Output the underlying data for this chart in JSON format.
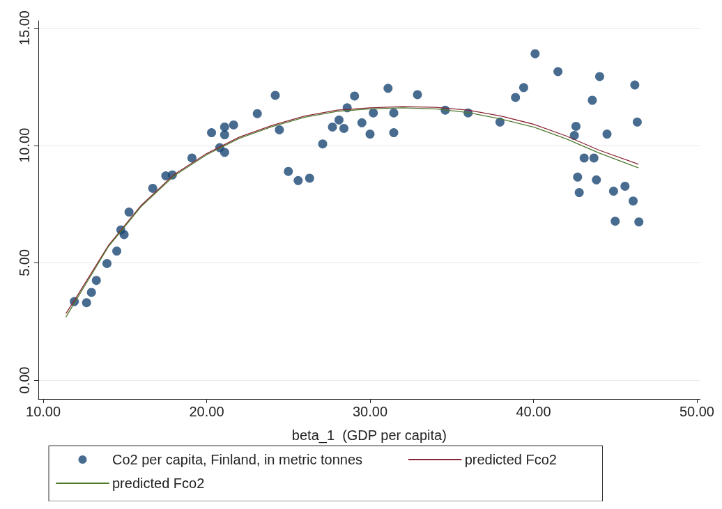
{
  "chart_data": {
    "type": "scatter",
    "xlabel": "beta_1  (GDP per capita)",
    "xlim": [
      9.7,
      50.2
    ],
    "xticks": [
      {
        "value": 10,
        "label": "10.00"
      },
      {
        "value": 20,
        "label": "20.00"
      },
      {
        "value": 30,
        "label": "30.00"
      },
      {
        "value": 40,
        "label": "40.00"
      },
      {
        "value": 50,
        "label": "50.00"
      }
    ],
    "ylim": [
      -0.8,
      15.3
    ],
    "yticks": [
      {
        "value": 0,
        "label": "0.00"
      },
      {
        "value": 5,
        "label": "5.00"
      },
      {
        "value": 10,
        "label": "10.00"
      },
      {
        "value": 15,
        "label": "15.00"
      }
    ],
    "grid": "y",
    "legend": "bottom",
    "series": [
      {
        "name": "Co2 per capita, Finland, in metric tonnes",
        "marker": "circle",
        "color": "#1a4674",
        "x": [
          11.9,
          12.65,
          12.95,
          13.25,
          13.9,
          14.5,
          14.75,
          14.95,
          15.25,
          16.7,
          17.5,
          17.9,
          19.1,
          20.3,
          20.8,
          21.1,
          21.1,
          21.1,
          21.65,
          23.1,
          24.2,
          24.45,
          25.0,
          25.6,
          26.3,
          27.1,
          27.7,
          28.1,
          28.4,
          28.6,
          29.05,
          29.5,
          30.0,
          30.2,
          31.1,
          31.45,
          31.45,
          32.9,
          34.6,
          36.0,
          37.95,
          38.9,
          39.4,
          40.1,
          41.5,
          42.5,
          42.6,
          42.7,
          42.8,
          43.1,
          43.6,
          43.7,
          43.85,
          44.05,
          44.5,
          44.9,
          45.6,
          46.1,
          45.0,
          46.45,
          46.2,
          46.35
        ],
        "values": [
          3.35,
          3.3,
          3.74,
          4.25,
          4.97,
          5.5,
          6.4,
          6.2,
          7.16,
          8.17,
          8.7,
          8.74,
          9.46,
          10.54,
          9.9,
          9.7,
          10.45,
          10.78,
          10.87,
          11.35,
          12.13,
          10.66,
          8.89,
          8.5,
          8.6,
          10.06,
          10.78,
          11.08,
          10.72,
          11.6,
          12.1,
          10.96,
          10.48,
          11.38,
          12.43,
          10.54,
          11.38,
          12.16,
          11.5,
          11.38,
          10.99,
          12.04,
          12.46,
          13.9,
          13.14,
          10.42,
          10.81,
          8.65,
          7.99,
          9.46,
          11.92,
          9.46,
          8.53,
          12.93,
          10.48,
          8.05,
          8.26,
          7.63,
          6.77,
          6.74,
          12.57,
          10.99
        ]
      },
      {
        "name": "predicted Fco2",
        "type": "line",
        "marker": "none",
        "color": "#8b2332",
        "x": [
          11.4,
          12,
          14,
          16,
          18,
          20,
          22,
          24,
          26,
          28,
          30,
          32,
          34,
          36,
          38,
          40,
          42,
          44,
          46.4
        ],
        "values": [
          2.85,
          3.5,
          5.75,
          7.45,
          8.75,
          9.65,
          10.35,
          10.85,
          11.25,
          11.5,
          11.6,
          11.65,
          11.62,
          11.5,
          11.25,
          10.9,
          10.4,
          9.8,
          9.2
        ]
      },
      {
        "name": "predicted Fco2",
        "type": "line",
        "marker": "none",
        "color": "#4f7a2e",
        "x": [
          11.4,
          12,
          14,
          16,
          18,
          20,
          22,
          24,
          26,
          28,
          30,
          32,
          34,
          36,
          38,
          40,
          42,
          44,
          46.4
        ],
        "values": [
          2.7,
          3.4,
          5.7,
          7.4,
          8.7,
          9.6,
          10.3,
          10.8,
          11.2,
          11.45,
          11.55,
          11.6,
          11.55,
          11.4,
          11.12,
          10.78,
          10.28,
          9.68,
          9.05
        ]
      }
    ]
  }
}
